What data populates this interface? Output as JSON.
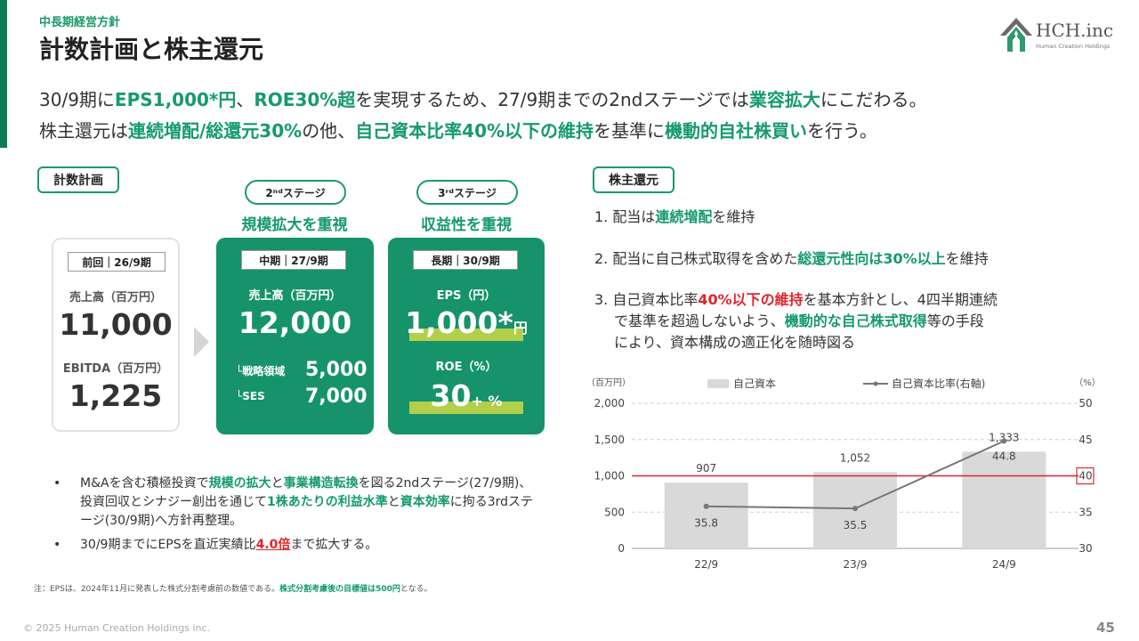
{
  "header": {
    "kicker": "中長期経営方針",
    "title": "計数計画と株主還元",
    "logo_name": "HCH.inc",
    "logo_sub": "Human Creation Holdings"
  },
  "lead": {
    "l1_a": "30/9期に",
    "l1_b": "EPS1,000*円",
    "l1_c": "、",
    "l1_d": "ROE30%超",
    "l1_e": "を実現するため、27/9期までの2ndステージでは",
    "l1_f": "業容拡大",
    "l1_g": "にこだわる。",
    "l2_a": "株主還元は",
    "l2_b": "連続増配/総還元30%",
    "l2_c": "の他、",
    "l2_d": "自己資本比率40%以下の維持",
    "l2_e": "を基準に",
    "l2_f": "機動的自社株買い",
    "l2_g": "を行う。"
  },
  "plan": {
    "tag": "計数計画",
    "stage2_pill": "2ⁿᵈステージ",
    "stage2_head": "規模拡大を重視",
    "stage3_pill": "3ʳᵈステージ",
    "stage3_head": "収益性を重視",
    "prev": {
      "chip": "前回｜26/9期",
      "label1": "売上高（百万円）",
      "value1": "11,000",
      "label2": "EBITDA（百万円）",
      "value2": "1,225"
    },
    "mid": {
      "chip": "中期｜27/9期",
      "label1": "売上高（百万円）",
      "value1": "12,000",
      "sub1_label": "└戦略領域",
      "sub1_value": "5,000",
      "sub2_label": "└SES",
      "sub2_value": "7,000"
    },
    "long": {
      "chip": "長期｜30/9期",
      "label1": "EPS（円）",
      "value1": "1,000*",
      "unit1": "円",
      "label2": "ROE（%）",
      "value2": "30",
      "unit2": "+ %"
    }
  },
  "bullets": {
    "dot": "•",
    "b1_a": "M&Aを含む積極投資で",
    "b1_b": "規模の拡大",
    "b1_c": "と",
    "b1_d": "事業構造転換",
    "b1_e": "を図る2ndステージ(27/9期)、投資回収とシナジー創出を通じて",
    "b1_f": "1株あたりの利益水準",
    "b1_g": "と",
    "b1_h": "資本効率",
    "b1_i": "に拘る3rdステージ(30/9期)へ方針再整理。",
    "b2_a": "30/9期までにEPSを直近実績比",
    "b2_b": "4.0倍",
    "b2_c": "まで拡大する。"
  },
  "note": {
    "a": "注：EPSは、2024年11月に発表した株式分割考慮前の数値である。",
    "b": "株式分割考慮後の目標値は500円",
    "c": "となる。"
  },
  "returns": {
    "tag": "株主還元",
    "r1_a": "1. 配当は",
    "r1_b": "連続増配",
    "r1_c": "を維持",
    "r2_a": "2. 配当に自己株式取得を含めた",
    "r2_b": "総還元性向は30%以上",
    "r2_c": "を維持",
    "r3_a": "3. 自己資本比率",
    "r3_b": "40%以下の維持",
    "r3_c": "を基本方針とし、4四半期連続",
    "r3_d": "で基準を超過しないよう、",
    "r3_e": "機動的な自己株式取得",
    "r3_f": "等の手段",
    "r3_g": "により、資本構成の適正化を随時図る"
  },
  "chart_data": {
    "type": "bar",
    "categories": [
      "22/9",
      "23/9",
      "24/9"
    ],
    "series": [
      {
        "name": "自己資本",
        "kind": "bar",
        "axis": "left",
        "values": [
          907,
          1052,
          1333
        ],
        "labels": [
          "907",
          "1,052",
          "1,333"
        ]
      },
      {
        "name": "自己資本比率(右軸)",
        "kind": "line",
        "axis": "right",
        "values": [
          35.8,
          35.5,
          44.8
        ],
        "labels": [
          "35.8",
          "35.5",
          "44.8"
        ]
      }
    ],
    "ylabel_left": "（百万円）",
    "ylabel_right": "（%）",
    "ylim_left": [
      0,
      2000
    ],
    "yticks_left": [
      0,
      500,
      1000,
      1500,
      2000
    ],
    "ytick_labels_left": [
      "0",
      "500",
      "1,000",
      "1,500",
      "2,000"
    ],
    "ylim_right": [
      30,
      50
    ],
    "yticks_right": [
      30,
      35,
      40,
      45,
      50
    ],
    "reference_line": {
      "axis": "right",
      "value": 40,
      "label": "40"
    },
    "legend": "top",
    "grid": true,
    "colors": {
      "bar": "#d9d9d9",
      "line": "#777777",
      "reference": "#e0252a"
    }
  },
  "footer": {
    "copyright": "© 2025 Human Creation Holdings inc.",
    "page": "45"
  },
  "colors": {
    "brand_green": "#16936a",
    "accent_red": "#e0252a",
    "highlight": "#b2cf4a"
  }
}
